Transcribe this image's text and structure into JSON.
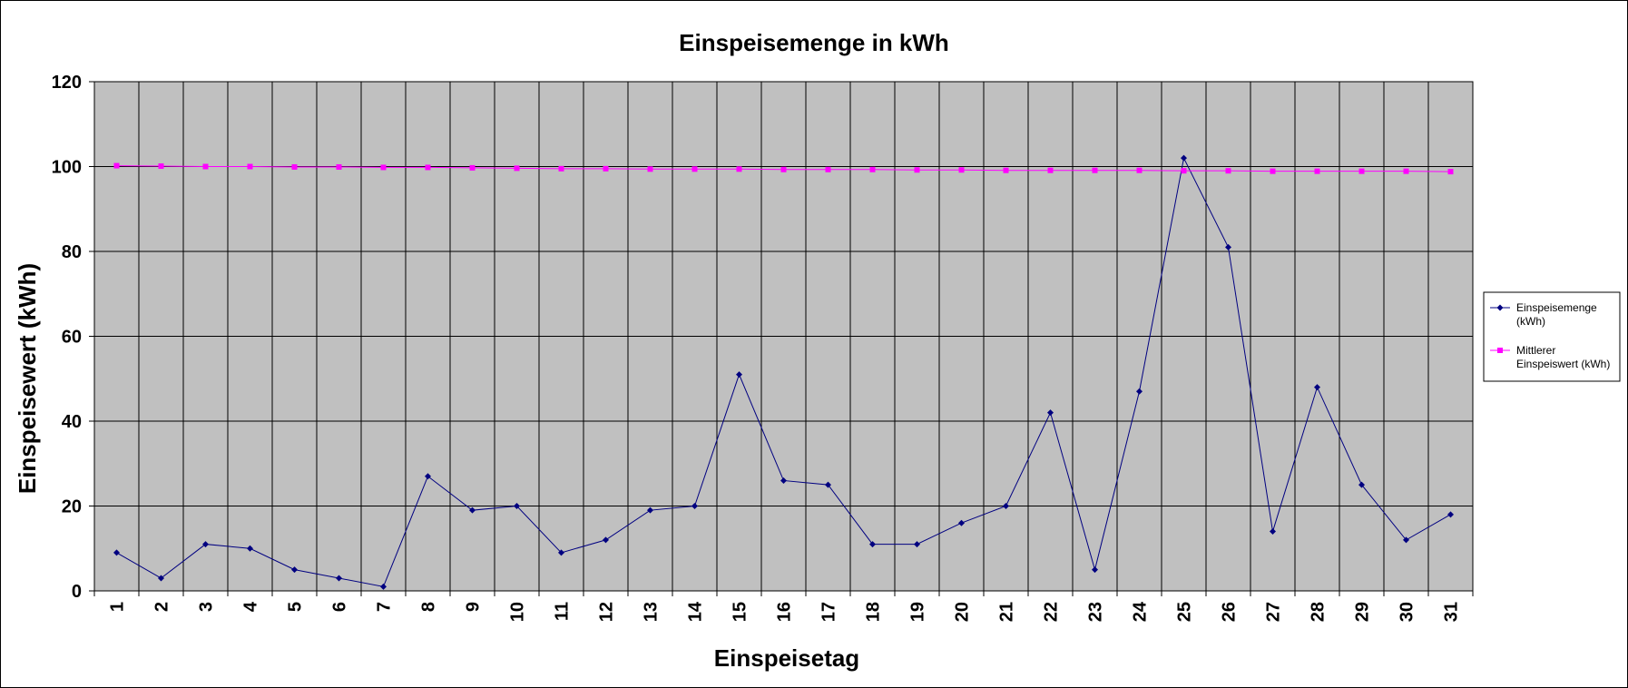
{
  "chart_data": {
    "type": "line",
    "title": "Einspeisemenge in kWh",
    "xlabel": "Einspeisetag",
    "ylabel": "Einspeisewert  (kWh)",
    "categories": [
      "1",
      "2",
      "3",
      "4",
      "5",
      "6",
      "7",
      "8",
      "9",
      "10",
      "11",
      "12",
      "13",
      "14",
      "15",
      "16",
      "17",
      "18",
      "19",
      "20",
      "21",
      "22",
      "23",
      "24",
      "25",
      "26",
      "27",
      "28",
      "29",
      "30",
      "31"
    ],
    "ylim": [
      0,
      120
    ],
    "yticks": [
      0,
      20,
      40,
      60,
      80,
      100,
      120
    ],
    "grid": true,
    "legend_position": "right",
    "series": [
      {
        "name": "Einspeisemenge (kWh)",
        "legend_lines": [
          "Einspeisemenge",
          "(kWh)"
        ],
        "color": "#000080",
        "marker": "diamond",
        "values": [
          9,
          3,
          11,
          10,
          5,
          3,
          1,
          27,
          19,
          20,
          9,
          12,
          19,
          20,
          51,
          26,
          25,
          11,
          11,
          16,
          20,
          42,
          5,
          47,
          102,
          81,
          14,
          48,
          25,
          12,
          18
        ]
      },
      {
        "name": "Mittlerer Einspeiswert (kWh)",
        "legend_lines": [
          "Mittlerer",
          "Einspeiswert (kWh)"
        ],
        "color": "#FF00FF",
        "marker": "square",
        "values": [
          100.2,
          100.1,
          100.0,
          100.0,
          99.9,
          99.9,
          99.8,
          99.8,
          99.7,
          99.6,
          99.5,
          99.5,
          99.4,
          99.4,
          99.4,
          99.3,
          99.3,
          99.3,
          99.2,
          99.2,
          99.1,
          99.1,
          99.1,
          99.1,
          99.0,
          99.0,
          98.9,
          98.9,
          98.9,
          98.9,
          98.8
        ]
      }
    ]
  },
  "colors": {
    "plot_background": "#C0C0C0",
    "gridline": "#000000",
    "page_background": "#FFFFFF"
  }
}
